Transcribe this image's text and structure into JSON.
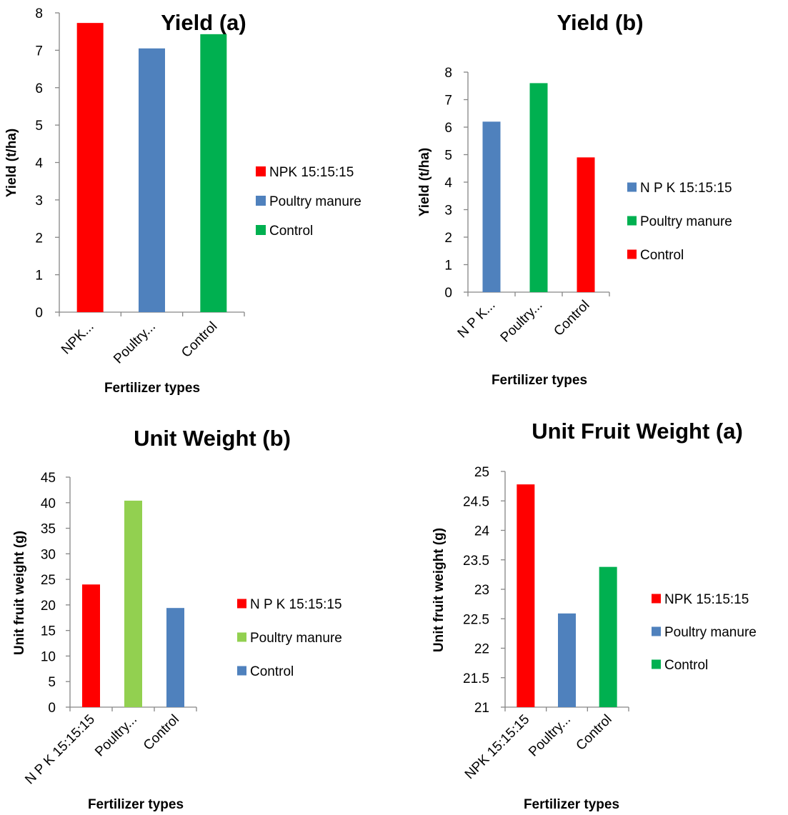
{
  "chart_data": [
    {
      "type": "bar",
      "title": "Yield (a)",
      "xlabel": "Fertilizer types",
      "ylabel": "Yield (t/ha)",
      "categories": [
        "NPK...",
        "Poultry...",
        "Control"
      ],
      "values": [
        7.73,
        7.05,
        7.43
      ],
      "colors": [
        "#FF0000",
        "#4F81BD",
        "#00B050"
      ],
      "ylim": [
        0,
        8
      ],
      "yticks": [
        0,
        1,
        2,
        3,
        4,
        5,
        6,
        7,
        8
      ],
      "legend": [
        "NPK 15:15:15",
        "Poultry manure",
        "Control"
      ],
      "legend_position": "right",
      "grid": false
    },
    {
      "type": "bar",
      "title": "Yield (b)",
      "xlabel": "Fertilizer types",
      "ylabel": "Yield (t/ha)",
      "categories": [
        "N P K...",
        "Poultry...",
        "Control"
      ],
      "values": [
        6.2,
        7.6,
        4.9
      ],
      "colors": [
        "#4F81BD",
        "#00B050",
        "#FF0000"
      ],
      "ylim": [
        0,
        8
      ],
      "yticks": [
        0,
        1,
        2,
        3,
        4,
        5,
        6,
        7,
        8
      ],
      "legend": [
        "N P K 15:15:15",
        "Poultry manure",
        "Control"
      ],
      "legend_position": "right",
      "grid": false
    },
    {
      "type": "bar",
      "title": "Unit Weight (b)",
      "xlabel": "Fertilizer types",
      "ylabel": "Unit fruit weight (g)",
      "categories": [
        "N P K 15:15:15",
        "Poultry...",
        "Control"
      ],
      "values": [
        24.0,
        40.4,
        19.4
      ],
      "colors": [
        "#FF0000",
        "#92D050",
        "#4F81BD"
      ],
      "ylim": [
        0,
        45
      ],
      "yticks": [
        0,
        5,
        10,
        15,
        20,
        25,
        30,
        35,
        40,
        45
      ],
      "legend": [
        "N P K 15:15:15",
        "Poultry manure",
        "Control"
      ],
      "legend_position": "right",
      "grid": false
    },
    {
      "type": "bar",
      "title": "Unit Fruit Weight (a)",
      "xlabel": "Fertilizer types",
      "ylabel": "Unit fruit weight (g)",
      "categories": [
        "NPK 15:15:15",
        "Poultry...",
        "Control"
      ],
      "values": [
        24.78,
        22.59,
        23.38
      ],
      "colors": [
        "#FF0000",
        "#4F81BD",
        "#00B050"
      ],
      "ylim": [
        21,
        25
      ],
      "yticks": [
        21,
        21.5,
        22,
        22.5,
        23,
        23.5,
        24,
        24.5,
        25
      ],
      "legend": [
        "NPK 15:15:15",
        "Poultry manure",
        "Control"
      ],
      "legend_position": "right",
      "grid": false
    }
  ]
}
